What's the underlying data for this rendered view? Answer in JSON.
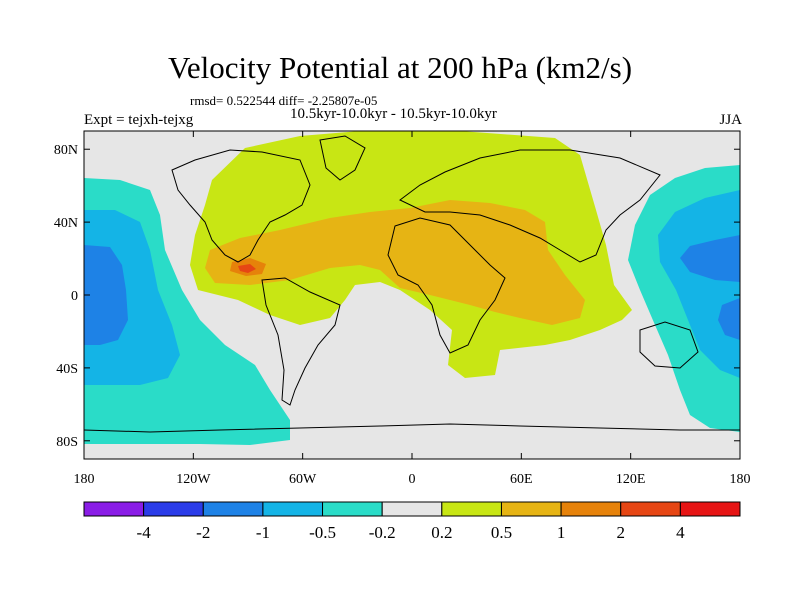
{
  "title": "Velocity Potential at 200 hPa (km2/s)",
  "stats_line": "rmsd= 0.522544 diff= -2.25807e-05",
  "experiment": "Expt = tejxh-tejxg",
  "comparison": "10.5kyr-10.0kyr - 10.5kyr-10.0kyr",
  "season": "JJA",
  "map": {
    "lon_ticks": [
      {
        "lon": -180,
        "label": "180"
      },
      {
        "lon": -120,
        "label": "120W"
      },
      {
        "lon": -60,
        "label": "60W"
      },
      {
        "lon": 0,
        "label": "0"
      },
      {
        "lon": 60,
        "label": "60E"
      },
      {
        "lon": 120,
        "label": "120E"
      },
      {
        "lon": 180,
        "label": "180"
      }
    ],
    "lat_ticks": [
      {
        "lat": 80,
        "label": "80N"
      },
      {
        "lat": 40,
        "label": "40N"
      },
      {
        "lat": 0,
        "label": "0"
      },
      {
        "lat": -40,
        "label": "40S"
      },
      {
        "lat": -80,
        "label": "80S"
      }
    ],
    "lon_range": [
      -180,
      180
    ],
    "lat_range": [
      -90,
      90
    ]
  },
  "colorbar": {
    "colors": [
      "#8a1de6",
      "#2b3ce8",
      "#1e82e6",
      "#14b4e6",
      "#2adcc8",
      "#e6e6e6",
      "#c8e614",
      "#e6b414",
      "#e6820a",
      "#e64614",
      "#e61414"
    ],
    "labels": [
      "-4",
      "-2",
      "-1",
      "-0.5",
      "-0.2",
      "0.2",
      "0.5",
      "1",
      "2",
      "4"
    ]
  },
  "colors": {
    "neutral": "#e6e6e6",
    "pos_weak": "#c8e614",
    "pos_mid": "#e6b414",
    "pos_strong": "#e6820a",
    "neg_weak": "#2adcc8",
    "neg_mid": "#14b4e6",
    "neg_strong": "#1e82e6"
  }
}
